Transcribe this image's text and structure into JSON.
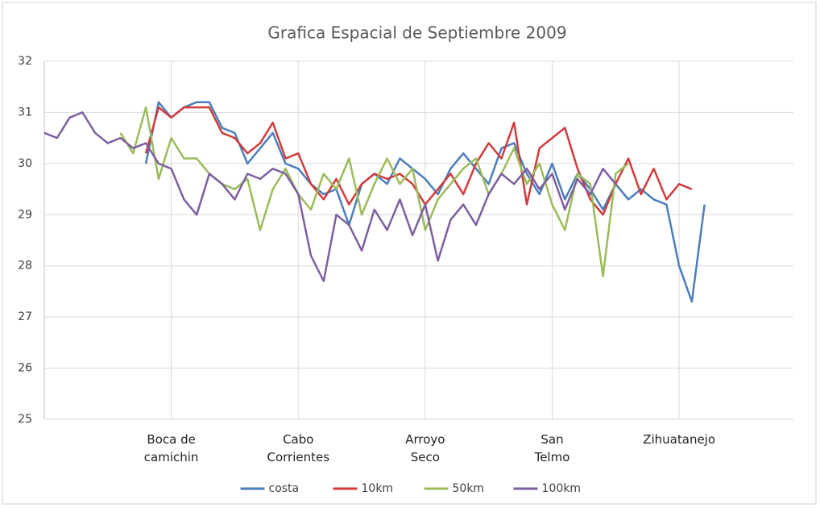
{
  "chart_data": {
    "type": "line",
    "title": "Grafica Espacial de Septiembre 2009",
    "categories": [
      null,
      null,
      null,
      null,
      null,
      null,
      null,
      null,
      null,
      null,
      "Boca de\ncamichin",
      null,
      null,
      null,
      null,
      null,
      null,
      null,
      null,
      null,
      "Cabo\nCorrientes",
      null,
      null,
      null,
      null,
      null,
      null,
      null,
      null,
      null,
      "Arroyo\nSeco",
      null,
      null,
      null,
      null,
      null,
      null,
      null,
      null,
      null,
      "San\nTelmo",
      null,
      null,
      null,
      null,
      null,
      null,
      null,
      null,
      null,
      "Zihuatanejo",
      null,
      null,
      null,
      null,
      null,
      null,
      null,
      null,
      null
    ],
    "series": [
      {
        "name": "costa",
        "color": "#4a7ebb",
        "values": [
          null,
          null,
          null,
          null,
          null,
          null,
          null,
          null,
          30.0,
          31.2,
          30.9,
          31.1,
          31.2,
          31.2,
          30.7,
          30.6,
          30.0,
          30.3,
          30.6,
          30.0,
          29.9,
          29.6,
          29.4,
          29.5,
          28.8,
          29.6,
          29.8,
          29.6,
          30.1,
          29.9,
          29.7,
          29.4,
          29.9,
          30.2,
          29.9,
          29.6,
          30.3,
          30.4,
          29.8,
          29.4,
          30.0,
          29.3,
          29.8,
          29.5,
          29.1,
          29.6,
          29.3,
          29.5,
          29.3,
          29.2,
          28.0,
          27.3,
          29.2,
          null,
          null,
          null,
          null,
          null,
          null,
          null
        ]
      },
      {
        "name": "10km",
        "color": "#d13b3b",
        "values": [
          null,
          null,
          null,
          null,
          null,
          null,
          null,
          null,
          30.2,
          31.1,
          30.9,
          31.1,
          31.1,
          31.1,
          30.6,
          30.5,
          30.2,
          30.4,
          30.8,
          30.1,
          30.2,
          29.6,
          29.3,
          29.7,
          29.2,
          29.6,
          29.8,
          29.7,
          29.8,
          29.6,
          29.2,
          29.5,
          29.8,
          29.4,
          30.0,
          30.4,
          30.1,
          30.8,
          29.2,
          30.3,
          30.5,
          30.7,
          29.9,
          29.3,
          29.0,
          29.6,
          30.1,
          29.4,
          29.9,
          29.3,
          29.6,
          29.5,
          null,
          null,
          null,
          null,
          null,
          null,
          null,
          null
        ]
      },
      {
        "name": "50km",
        "color": "#9bbb59",
        "values": [
          null,
          null,
          null,
          null,
          null,
          null,
          30.6,
          30.2,
          31.1,
          29.7,
          30.5,
          30.1,
          30.1,
          29.8,
          29.6,
          29.5,
          29.7,
          28.7,
          29.5,
          29.9,
          29.4,
          29.1,
          29.8,
          29.5,
          30.1,
          29.0,
          29.6,
          30.1,
          29.6,
          29.9,
          28.7,
          29.3,
          29.6,
          29.9,
          30.1,
          29.4,
          29.8,
          30.3,
          29.6,
          30.0,
          29.2,
          28.7,
          29.8,
          29.6,
          27.8,
          29.8,
          30.0,
          null,
          null,
          null,
          null,
          null,
          null,
          null,
          null,
          null,
          null,
          null,
          null,
          null
        ]
      },
      {
        "name": "100km",
        "color": "#7d5fa0",
        "values": [
          30.6,
          30.5,
          30.9,
          31.0,
          30.6,
          30.4,
          30.5,
          30.3,
          30.4,
          30.0,
          29.9,
          29.3,
          29.0,
          29.8,
          29.6,
          29.3,
          29.8,
          29.7,
          29.9,
          29.8,
          29.4,
          28.2,
          27.7,
          29.0,
          28.8,
          28.3,
          29.1,
          28.7,
          29.3,
          28.6,
          29.2,
          28.1,
          28.9,
          29.2,
          28.8,
          29.4,
          29.8,
          29.6,
          29.9,
          29.5,
          29.8,
          29.1,
          29.7,
          29.4,
          29.9,
          29.6,
          null,
          null,
          null,
          null,
          null,
          null,
          null,
          null,
          null,
          null,
          null,
          null,
          null,
          null
        ]
      }
    ],
    "ylim": [
      25,
      32
    ],
    "yticks": [
      25,
      26,
      27,
      28,
      29,
      30,
      31,
      32
    ],
    "grid": true,
    "legend": "bottom"
  }
}
